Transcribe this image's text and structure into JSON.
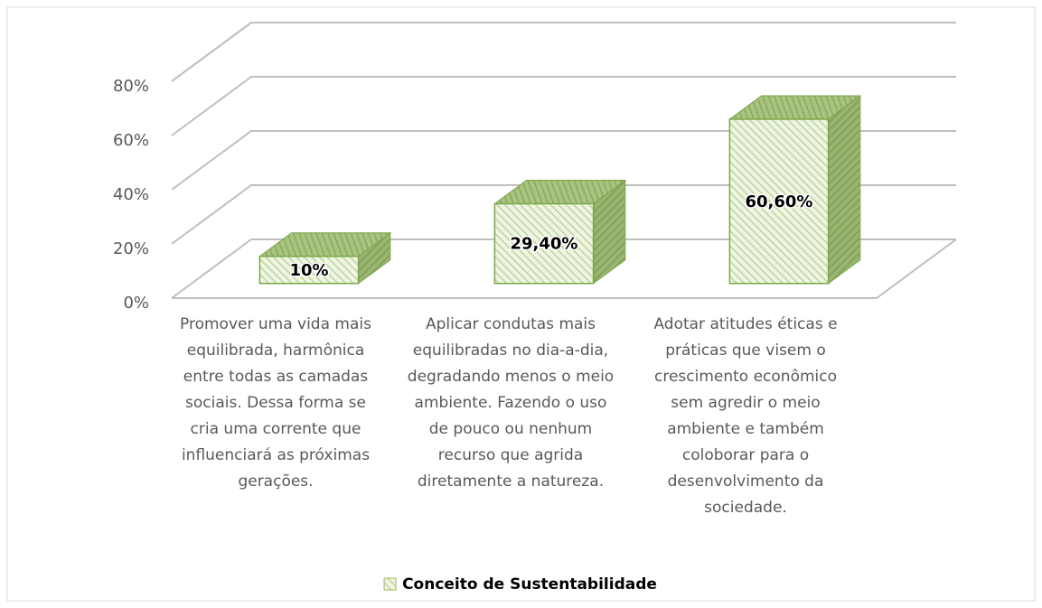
{
  "chart_data": {
    "type": "bar3d",
    "categories": [
      "Promover uma vida mais equilibrada, harmônica entre todas as camadas sociais. Dessa forma se cria uma corrente que influenciará as próximas gerações.",
      "Aplicar condutas mais equilibradas no dia-a-dia, degradando menos o meio ambiente. Fazendo o uso de pouco ou nenhum recurso que agrida diretamente a natureza.",
      "Adotar atitudes éticas e práticas que visem o crescimento econômico sem agredir o meio ambiente e também coloborar para o desenvolvimento da sociedade."
    ],
    "series": [
      {
        "name": "Conceito de Sustentabilidade",
        "color": "#9bbb59",
        "values": [
          10,
          29.4,
          60.6
        ],
        "value_labels": [
          "10%",
          "29,40%",
          "60,60%"
        ]
      }
    ],
    "ylim": [
      0,
      80
    ],
    "yticks": [
      {
        "value": 0,
        "label": "0%"
      },
      {
        "value": 20,
        "label": "20%"
      },
      {
        "value": 40,
        "label": "40%"
      },
      {
        "value": 60,
        "label": "60%"
      },
      {
        "value": 80,
        "label": "80%"
      }
    ],
    "grid": true,
    "legend": "bottom"
  }
}
